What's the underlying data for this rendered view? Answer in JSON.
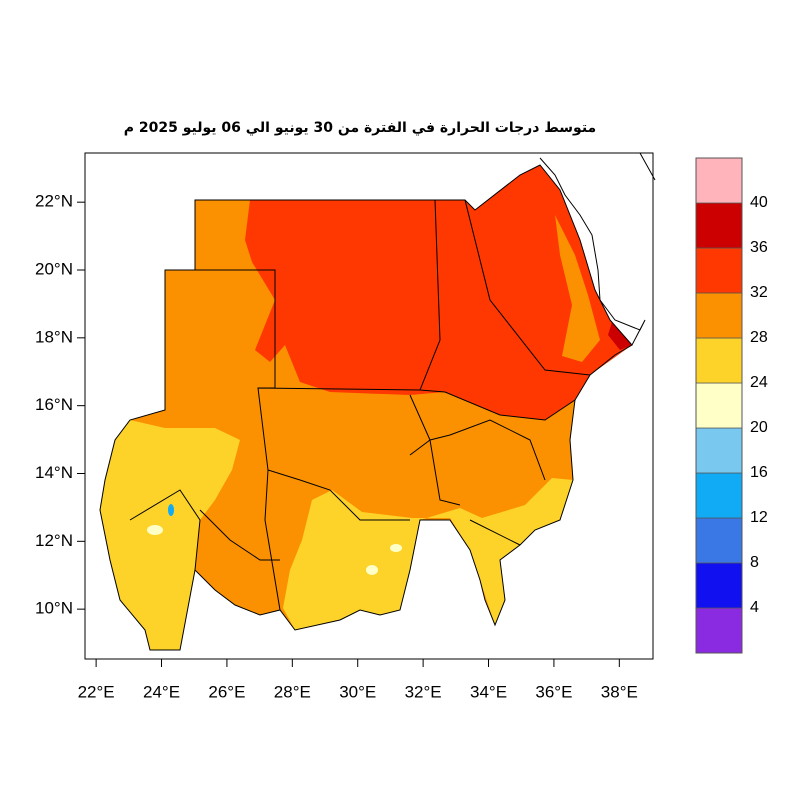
{
  "title": "متوسط درجات الحرارة في الفترة من 30 يونيو الي 06 يوليو 2025 م",
  "map": {
    "xlim": [
      21.66,
      39.03
    ],
    "ylim": [
      8.53,
      23.45
    ],
    "xticks": [
      {
        "value": 22,
        "label": "22°E"
      },
      {
        "value": 24,
        "label": "24°E"
      },
      {
        "value": 26,
        "label": "26°E"
      },
      {
        "value": 28,
        "label": "28°E"
      },
      {
        "value": 30,
        "label": "30°E"
      },
      {
        "value": 32,
        "label": "32°E"
      },
      {
        "value": 34,
        "label": "34°E"
      },
      {
        "value": 36,
        "label": "36°E"
      },
      {
        "value": 38,
        "label": "38°E"
      }
    ],
    "yticks": [
      {
        "value": 10,
        "label": "10°N"
      },
      {
        "value": 12,
        "label": "12°N"
      },
      {
        "value": 14,
        "label": "14°N"
      },
      {
        "value": 16,
        "label": "16°N"
      },
      {
        "value": 18,
        "label": "18°N"
      },
      {
        "value": 20,
        "label": "20°N"
      },
      {
        "value": 22,
        "label": "22°N"
      }
    ]
  },
  "colorbar": {
    "levels": [
      4,
      8,
      12,
      16,
      20,
      24,
      28,
      32,
      36,
      40
    ],
    "colors": [
      "#8a2be2",
      "#1010f0",
      "#3a78e6",
      "#10aaf5",
      "#78c8f0",
      "#ffffc8",
      "#fdd32a",
      "#fb9100",
      "#ff3700",
      "#cc0000",
      "#ffb4bc"
    ]
  }
}
